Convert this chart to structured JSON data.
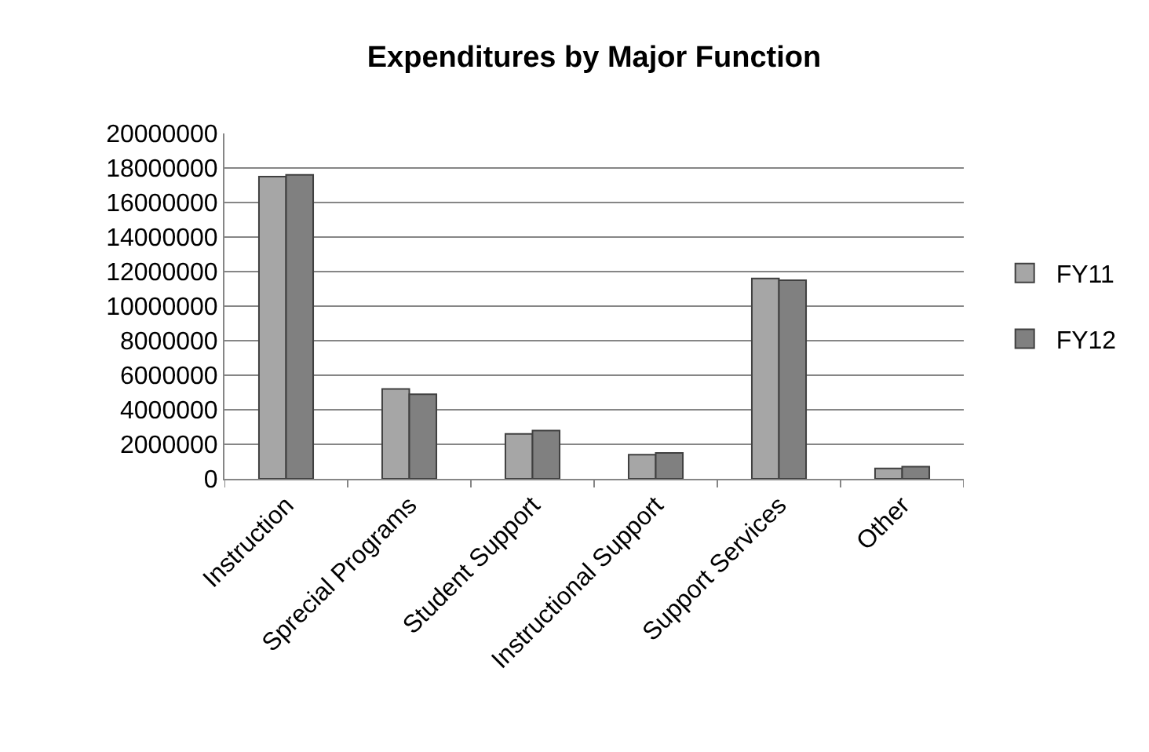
{
  "chart_data": {
    "type": "bar",
    "title": "Expenditures by Major Function",
    "categories": [
      "Instruction",
      "Sprecial Programs",
      "Student Support",
      "Instructional Support",
      "Support Services",
      "Other"
    ],
    "series": [
      {
        "name": "FY11",
        "color": "#a6a6a6",
        "values": [
          17500000,
          5200000,
          2600000,
          1400000,
          11600000,
          600000
        ]
      },
      {
        "name": "FY12",
        "color": "#808080",
        "values": [
          17600000,
          4900000,
          2800000,
          1500000,
          11500000,
          700000
        ]
      }
    ],
    "ylim": [
      0,
      20000000
    ],
    "yticks": [
      0,
      2000000,
      4000000,
      6000000,
      8000000,
      10000000,
      12000000,
      14000000,
      16000000,
      18000000,
      20000000
    ],
    "grid": "y",
    "legend": "right"
  }
}
